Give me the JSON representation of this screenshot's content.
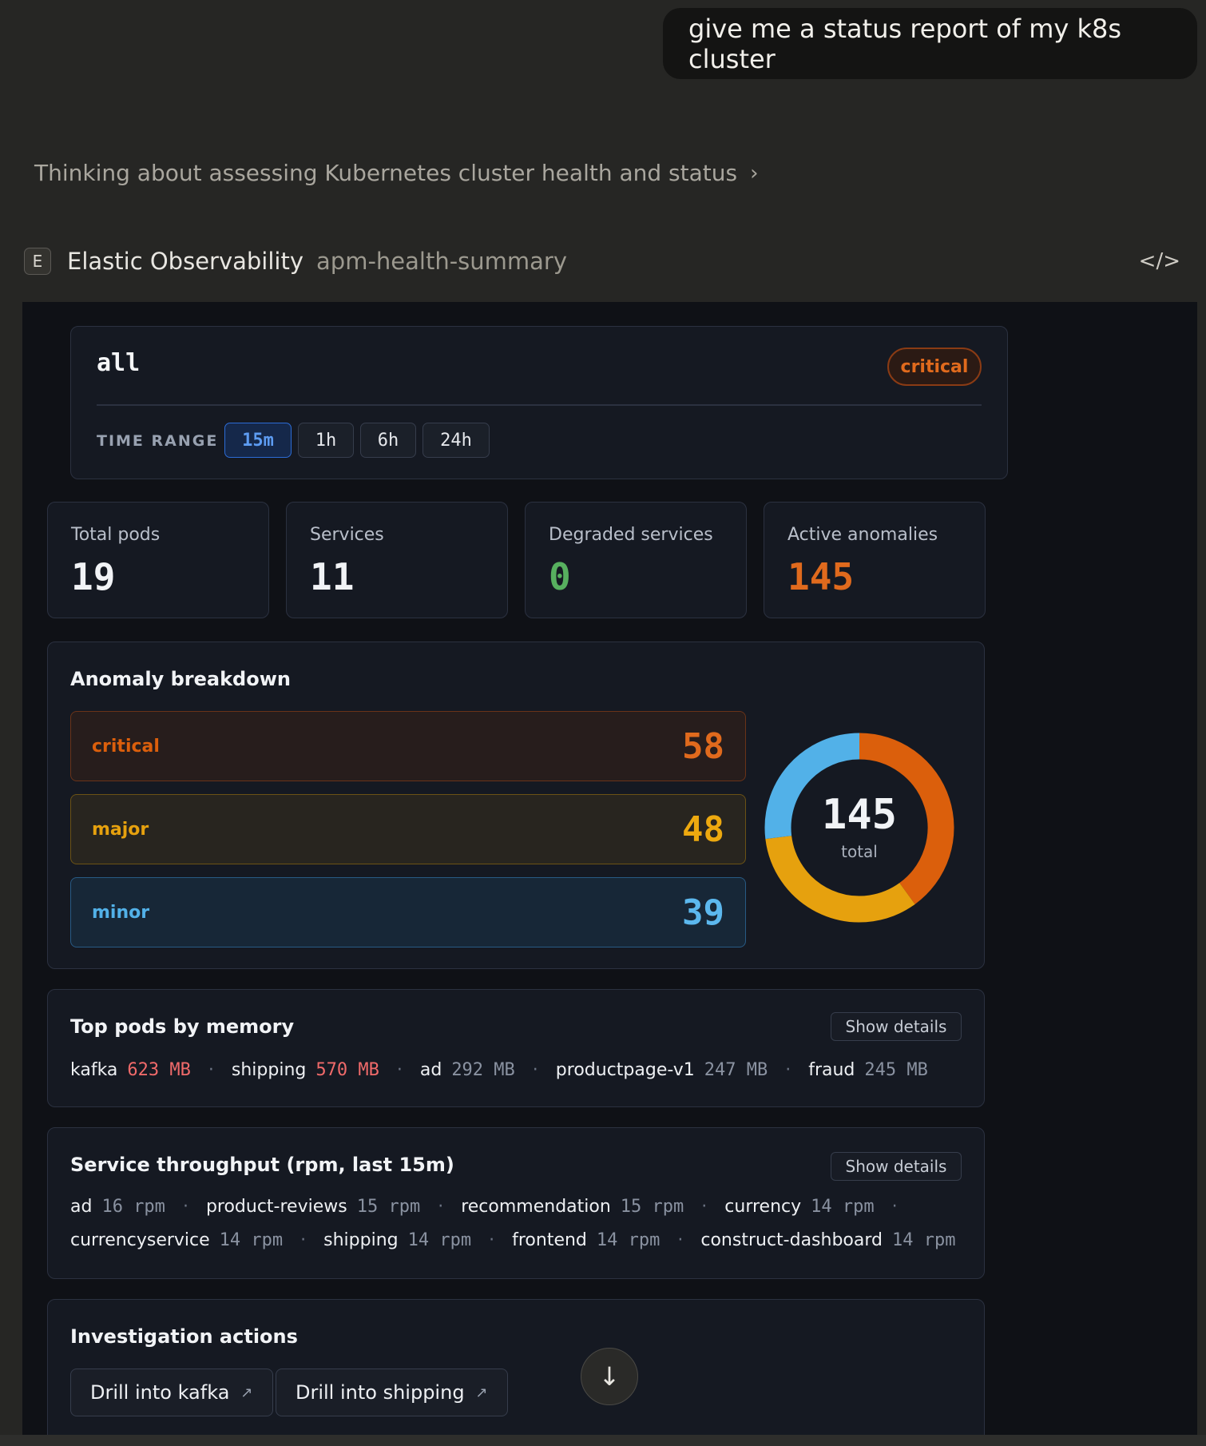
{
  "user_message": "give me a status report of my k8s cluster",
  "thinking": "Thinking about assessing Kubernetes cluster health and status",
  "tool": {
    "badge": "E",
    "name": "Elastic Observability",
    "function": "apm-health-summary",
    "code_icon": "</>"
  },
  "header": {
    "title": "all",
    "status": "critical",
    "time_range_label": "TIME RANGE",
    "time_ranges": [
      "15m",
      "1h",
      "6h",
      "24h"
    ],
    "selected_range": "15m"
  },
  "stats": [
    {
      "label": "Total pods",
      "value": "19",
      "color": "#f1f3f6"
    },
    {
      "label": "Services",
      "value": "11",
      "color": "#f1f3f6"
    },
    {
      "label": "Degraded services",
      "value": "0",
      "color": "#57b05f"
    },
    {
      "label": "Active anomalies",
      "value": "145",
      "color": "#e06a1d"
    }
  ],
  "anomaly": {
    "title": "Anomaly breakdown",
    "severities": [
      {
        "name": "critical",
        "count": 58,
        "color": "#db5f0c"
      },
      {
        "name": "major",
        "count": 48,
        "color": "#e6a10e"
      },
      {
        "name": "minor",
        "count": 39,
        "color": "#52b1e8"
      }
    ],
    "total": "145",
    "total_label": "total"
  },
  "memory": {
    "title": "Top pods by memory",
    "show_details": "Show details",
    "items": [
      {
        "name": "kafka",
        "value": "623 MB",
        "highlight": true
      },
      {
        "name": "shipping",
        "value": "570 MB",
        "highlight": true
      },
      {
        "name": "ad",
        "value": "292 MB",
        "highlight": false
      },
      {
        "name": "productpage-v1",
        "value": "247 MB",
        "highlight": false
      },
      {
        "name": "fraud",
        "value": "245 MB",
        "highlight": false
      }
    ]
  },
  "throughput": {
    "title": "Service throughput (rpm, last 15m)",
    "show_details": "Show details",
    "rows": [
      [
        {
          "name": "ad",
          "value": "16 rpm"
        },
        {
          "name": "product-reviews",
          "value": "15 rpm"
        },
        {
          "name": "recommendation",
          "value": "15 rpm"
        },
        {
          "name": "currency",
          "value": "14 rpm"
        }
      ],
      [
        {
          "name": "currencyservice",
          "value": "14 rpm"
        },
        {
          "name": "shipping",
          "value": "14 rpm"
        },
        {
          "name": "frontend",
          "value": "14 rpm"
        },
        {
          "name": "construct-dashboard",
          "value": "14 rpm"
        }
      ]
    ]
  },
  "actions": {
    "title": "Investigation actions",
    "buttons": [
      "Drill into kafka",
      "Drill into shipping"
    ]
  }
}
